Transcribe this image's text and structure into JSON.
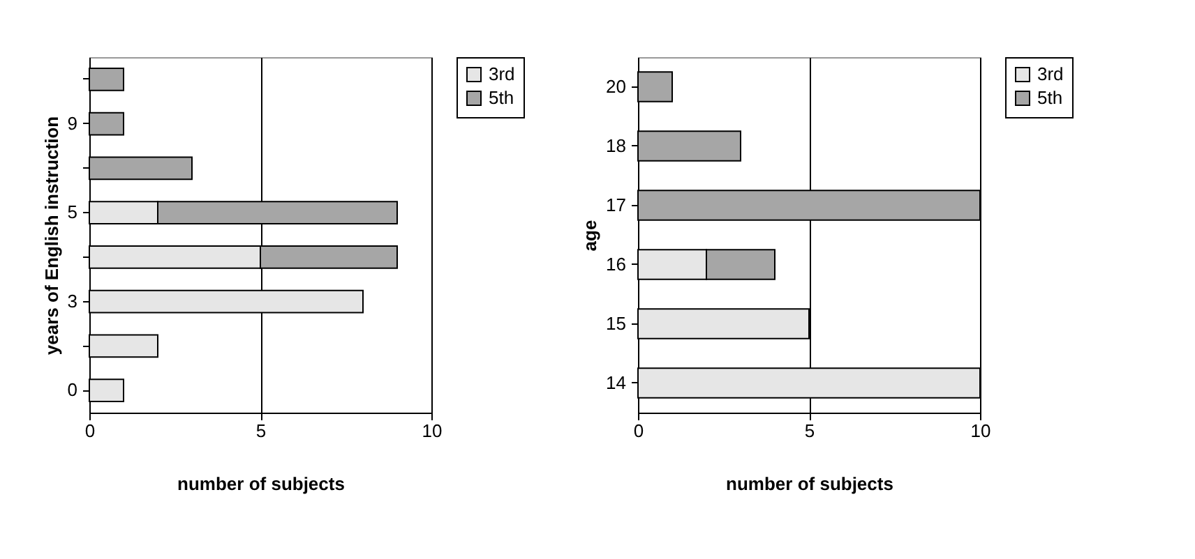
{
  "chart_data": [
    {
      "type": "bar",
      "orientation": "horizontal",
      "stacked": true,
      "ylabel": "years of English instruction",
      "xlabel": "number of subjects",
      "categories": [
        null,
        "9",
        null,
        "5",
        null,
        "3",
        null,
        "0"
      ],
      "series": [
        {
          "name": "3rd",
          "color": "#e6e6e6",
          "values": [
            0,
            0,
            0,
            2,
            5,
            8,
            2,
            1
          ]
        },
        {
          "name": "5th",
          "color": "#a6a6a6",
          "values": [
            1,
            1,
            3,
            7,
            4,
            0,
            0,
            0
          ]
        }
      ],
      "xlim": [
        0,
        10
      ],
      "xticks": [
        0,
        5,
        10
      ],
      "grid": "x",
      "legend": "right"
    },
    {
      "type": "bar",
      "orientation": "horizontal",
      "stacked": true,
      "ylabel": "age",
      "xlabel": "number of subjects",
      "categories": [
        "20",
        "18",
        "17",
        "16",
        "15",
        "14"
      ],
      "series": [
        {
          "name": "3rd",
          "color": "#e6e6e6",
          "values": [
            0,
            0,
            0,
            2,
            5,
            10
          ]
        },
        {
          "name": "5th",
          "color": "#a6a6a6",
          "values": [
            1,
            3,
            10,
            2,
            0,
            0
          ]
        }
      ],
      "xlim": [
        0,
        10
      ],
      "xticks": [
        0,
        5,
        10
      ],
      "grid": "x",
      "legend": "right"
    }
  ]
}
